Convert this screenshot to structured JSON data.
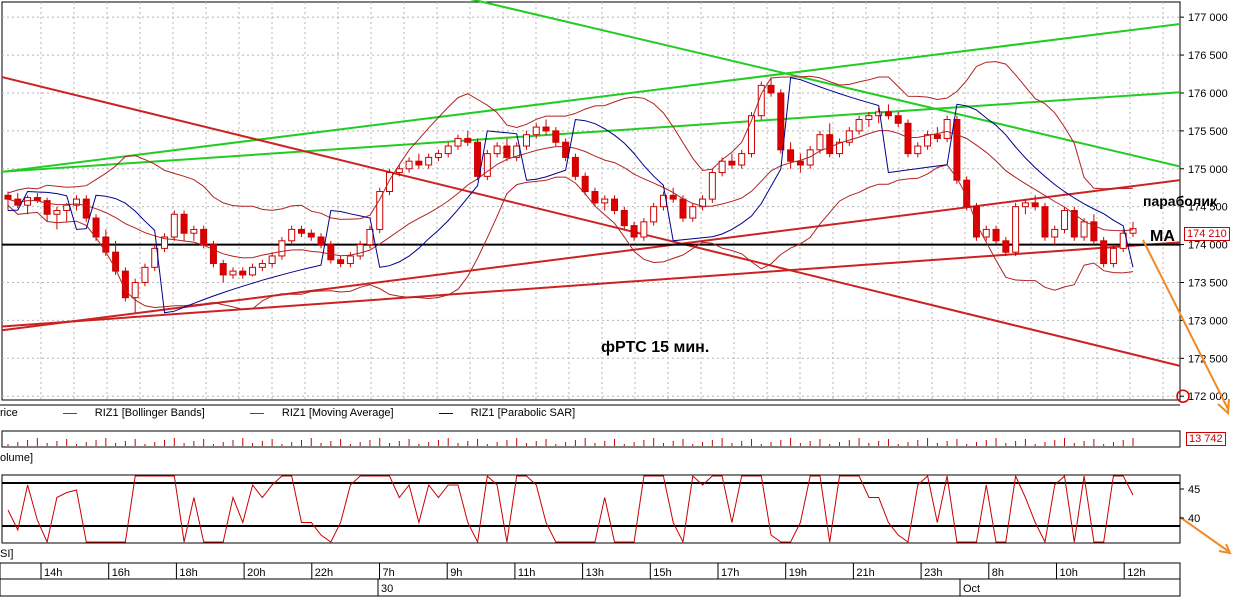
{
  "chart_data": {
    "type": "candlestick",
    "title": "фРТС   15 мин.",
    "annotations": {
      "parabolic": "параболик",
      "ma": "MA"
    },
    "price_axis": {
      "ticks": [
        "177 000",
        "176 500",
        "176 000",
        "175 500",
        "175 000",
        "174 500",
        "174 000",
        "173 500",
        "173 000",
        "172 500",
        "172 000"
      ],
      "range": [
        171950,
        177200
      ],
      "last_price": "174 210"
    },
    "volume_axis": {
      "last_value": "13 742"
    },
    "rsi_axis": {
      "ticks": [
        "45",
        "40"
      ]
    },
    "time_axis": {
      "hour_labels": [
        "14h",
        "16h",
        "18h",
        "20h",
        "22h",
        "7h",
        "9h",
        "11h",
        "13h",
        "15h",
        "17h",
        "19h",
        "21h",
        "23h",
        "8h",
        "10h",
        "12h"
      ],
      "date_labels": [
        "30",
        "Oct"
      ]
    },
    "legend": [
      {
        "label": "rice",
        "color": "#000000"
      },
      {
        "label": "RIZ1 [Bollinger Bands]",
        "color": "#b22222"
      },
      {
        "label": "RIZ1 [Moving Average]",
        "color": "#b22222"
      },
      {
        "label": "RIZ1 [Parabolic SAR]",
        "color": "#00008b"
      }
    ],
    "pane_labels": {
      "volume": "olume]",
      "rsi": "SI]"
    },
    "candles": [
      [
        174650,
        174700,
        174450,
        174600
      ],
      [
        174600,
        174680,
        174480,
        174520
      ],
      [
        174520,
        174650,
        174400,
        174620
      ],
      [
        174620,
        174680,
        174550,
        174580
      ],
      [
        174580,
        174620,
        174300,
        174400
      ],
      [
        174400,
        174500,
        174200,
        174450
      ],
      [
        174450,
        174550,
        174300,
        174520
      ],
      [
        174520,
        174650,
        174450,
        174600
      ],
      [
        174600,
        174650,
        174300,
        174350
      ],
      [
        174350,
        174400,
        174050,
        174100
      ],
      [
        174100,
        174200,
        173850,
        173900
      ],
      [
        173900,
        174050,
        173600,
        173650
      ],
      [
        173650,
        173700,
        173250,
        173300
      ],
      [
        173300,
        173550,
        173100,
        173500
      ],
      [
        173500,
        173750,
        173450,
        173700
      ],
      [
        173700,
        174000,
        173650,
        173950
      ],
      [
        173950,
        174150,
        173900,
        174100
      ],
      [
        174100,
        174450,
        174050,
        174400
      ],
      [
        174400,
        174450,
        174050,
        174150
      ],
      [
        174150,
        174250,
        174050,
        174200
      ],
      [
        174200,
        174250,
        173950,
        174000
      ],
      [
        174000,
        174050,
        173700,
        173750
      ],
      [
        173750,
        173800,
        173500,
        173600
      ],
      [
        173600,
        173700,
        173550,
        173650
      ],
      [
        173650,
        173700,
        173550,
        173600
      ],
      [
        173600,
        173750,
        173580,
        173700
      ],
      [
        173700,
        173800,
        173650,
        173750
      ],
      [
        173750,
        173900,
        173700,
        173850
      ],
      [
        173850,
        174100,
        173800,
        174050
      ],
      [
        174050,
        174250,
        174000,
        174200
      ],
      [
        174200,
        174250,
        174100,
        174150
      ],
      [
        174150,
        174200,
        174050,
        174100
      ],
      [
        174100,
        174150,
        173950,
        174000
      ],
      [
        174000,
        174050,
        173750,
        173800
      ],
      [
        173800,
        173850,
        173700,
        173750
      ],
      [
        173750,
        173900,
        173700,
        173850
      ],
      [
        173850,
        174050,
        173800,
        174000
      ],
      [
        174000,
        174250,
        173950,
        174200
      ],
      [
        174200,
        174750,
        174150,
        174700
      ],
      [
        174700,
        175000,
        174650,
        174950
      ],
      [
        174950,
        175050,
        174900,
        175000
      ],
      [
        175000,
        175150,
        174950,
        175100
      ],
      [
        175100,
        175200,
        175000,
        175050
      ],
      [
        175050,
        175200,
        175000,
        175150
      ],
      [
        175150,
        175250,
        175100,
        175200
      ],
      [
        175200,
        175350,
        175150,
        175300
      ],
      [
        175300,
        175450,
        175250,
        175400
      ],
      [
        175400,
        175500,
        175300,
        175350
      ],
      [
        175350,
        175400,
        174850,
        174900
      ],
      [
        174900,
        175250,
        174850,
        175200
      ],
      [
        175200,
        175350,
        175150,
        175300
      ],
      [
        175300,
        175400,
        175100,
        175150
      ],
      [
        175150,
        175350,
        175100,
        175300
      ],
      [
        175300,
        175500,
        175250,
        175450
      ],
      [
        175450,
        175600,
        175400,
        175550
      ],
      [
        175550,
        175650,
        175450,
        175500
      ],
      [
        175500,
        175550,
        175300,
        175350
      ],
      [
        175350,
        175400,
        175100,
        175150
      ],
      [
        175150,
        175200,
        174850,
        174900
      ],
      [
        174900,
        174950,
        174650,
        174700
      ],
      [
        174700,
        174750,
        174500,
        174550
      ],
      [
        174550,
        174650,
        174450,
        174600
      ],
      [
        174600,
        174650,
        174400,
        174450
      ],
      [
        174450,
        174500,
        174200,
        174250
      ],
      [
        174250,
        174300,
        174050,
        174100
      ],
      [
        174100,
        174350,
        174050,
        174300
      ],
      [
        174300,
        174550,
        174250,
        174500
      ],
      [
        174500,
        174700,
        174450,
        174650
      ],
      [
        174650,
        174750,
        174550,
        174600
      ],
      [
        174600,
        174650,
        174300,
        174350
      ],
      [
        174350,
        174550,
        174300,
        174500
      ],
      [
        174500,
        174650,
        174450,
        174600
      ],
      [
        174600,
        175000,
        174550,
        174950
      ],
      [
        174950,
        175150,
        174900,
        175100
      ],
      [
        175100,
        175200,
        175000,
        175050
      ],
      [
        175050,
        175250,
        175000,
        175200
      ],
      [
        175200,
        175750,
        175150,
        175700
      ],
      [
        175700,
        176150,
        175650,
        176100
      ],
      [
        176100,
        176200,
        175950,
        176000
      ],
      [
        176000,
        176050,
        175200,
        175250
      ],
      [
        175250,
        175350,
        175000,
        175100
      ],
      [
        175100,
        175200,
        174950,
        175050
      ],
      [
        175050,
        175300,
        175000,
        175250
      ],
      [
        175250,
        175500,
        175200,
        175450
      ],
      [
        175450,
        175600,
        175150,
        175200
      ],
      [
        175200,
        175400,
        175150,
        175350
      ],
      [
        175350,
        175550,
        175300,
        175500
      ],
      [
        175500,
        175700,
        175450,
        175650
      ],
      [
        175650,
        175750,
        175550,
        175700
      ],
      [
        175700,
        175800,
        175600,
        175750
      ],
      [
        175750,
        175850,
        175650,
        175700
      ],
      [
        175700,
        175750,
        175550,
        175600
      ],
      [
        175600,
        175650,
        175150,
        175200
      ],
      [
        175200,
        175350,
        175150,
        175300
      ],
      [
        175300,
        175500,
        175250,
        175450
      ],
      [
        175450,
        175550,
        175350,
        175400
      ],
      [
        175400,
        175700,
        175350,
        175650
      ],
      [
        175650,
        175700,
        174800,
        174850
      ],
      [
        174850,
        174900,
        174450,
        174500
      ],
      [
        174500,
        174550,
        174050,
        174100
      ],
      [
        174100,
        174250,
        174050,
        174200
      ],
      [
        174200,
        174250,
        174000,
        174050
      ],
      [
        174050,
        174100,
        173850,
        173900
      ],
      [
        173900,
        174550,
        173850,
        174500
      ],
      [
        174500,
        174600,
        174400,
        174550
      ],
      [
        174550,
        174650,
        174450,
        174500
      ],
      [
        174500,
        174550,
        174050,
        174100
      ],
      [
        174100,
        174250,
        174000,
        174200
      ],
      [
        174200,
        174500,
        174150,
        174450
      ],
      [
        174450,
        174500,
        174050,
        174100
      ],
      [
        174100,
        174350,
        174050,
        174300
      ],
      [
        174300,
        174400,
        174000,
        174050
      ],
      [
        174050,
        174100,
        173700,
        173750
      ],
      [
        173750,
        174000,
        173700,
        173950
      ],
      [
        173950,
        174200,
        173900,
        174150
      ],
      [
        174150,
        174300,
        174100,
        174210
      ]
    ]
  }
}
